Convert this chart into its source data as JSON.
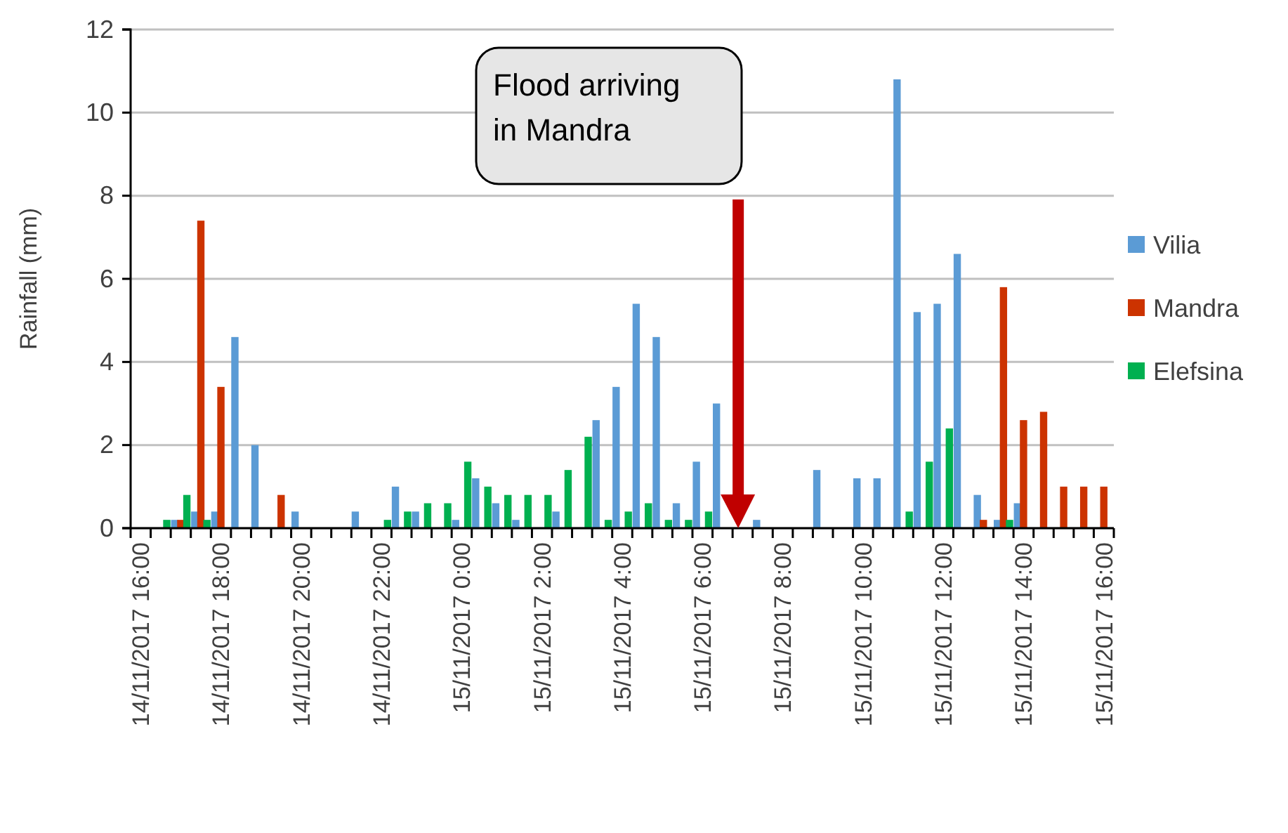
{
  "chart_data": {
    "type": "bar",
    "ylabel": "Rainfall (mm)",
    "categories": [
      "14/11/2017 16:00",
      null,
      null,
      null,
      "14/11/2017 18:00",
      null,
      null,
      null,
      "14/11/2017 20:00",
      null,
      null,
      null,
      "14/11/2017 22:00",
      null,
      null,
      null,
      "15/11/2017 0:00",
      null,
      null,
      null,
      "15/11/2017 2:00",
      null,
      null,
      null,
      "15/11/2017 4:00",
      null,
      null,
      null,
      "15/11/2017 6:00",
      null,
      null,
      null,
      "15/11/2017 8:00",
      null,
      null,
      null,
      "15/11/2017 10:00",
      null,
      null,
      null,
      "15/11/2017 12:00",
      null,
      null,
      null,
      "15/11/2017 14:00",
      null,
      null,
      null,
      "15/11/2017 16:00"
    ],
    "series": [
      {
        "name": "Vilia",
        "color": "#5b9bd5",
        "values": [
          0,
          0,
          0.2,
          0.4,
          0.4,
          4.6,
          2.0,
          0,
          0.4,
          0,
          0,
          0.4,
          0,
          1.0,
          0.4,
          0,
          0.2,
          1.2,
          0.6,
          0.2,
          0,
          0.4,
          0,
          2.6,
          3.4,
          5.4,
          4.6,
          0.6,
          1.6,
          3.0,
          0,
          0.2,
          0,
          0,
          1.4,
          0,
          1.2,
          1.2,
          10.8,
          5.2,
          5.4,
          6.6,
          0.8,
          0.2,
          0.6,
          0,
          0,
          0,
          0
        ]
      },
      {
        "name": "Mandra",
        "color": "#cc3300",
        "values": [
          0,
          0,
          0.2,
          7.4,
          3.4,
          0,
          0,
          0.8,
          0,
          0,
          0,
          0,
          0,
          0,
          0,
          0,
          0,
          0,
          0,
          0,
          0,
          0,
          0,
          0,
          0,
          0,
          0,
          0,
          0,
          0,
          0,
          0,
          0,
          0,
          0,
          0,
          0,
          0,
          0,
          0,
          0,
          0,
          0.2,
          5.8,
          2.6,
          2.8,
          1.0,
          1.0,
          1.0
        ]
      },
      {
        "name": "Elefsina",
        "color": "#00b050",
        "values": [
          0,
          0.2,
          0.8,
          0.2,
          0,
          0,
          0,
          0,
          0,
          0,
          0,
          0,
          0.2,
          0.4,
          0.6,
          0.6,
          1.6,
          1.0,
          0.8,
          0.8,
          0.8,
          1.4,
          2.2,
          0.2,
          0.4,
          0.6,
          0.2,
          0.2,
          0.4,
          0,
          0,
          0,
          0,
          0,
          0,
          0,
          0,
          0,
          0.4,
          1.6,
          2.4,
          0,
          0,
          0.2,
          0,
          0,
          0,
          0,
          0
        ]
      }
    ],
    "ylim": [
      0,
      12
    ],
    "yticks": [
      0,
      2,
      4,
      6,
      8,
      10,
      12
    ],
    "grid": "y",
    "legend": "right",
    "annotations": [
      "Flood arriving in Mandra"
    ]
  }
}
